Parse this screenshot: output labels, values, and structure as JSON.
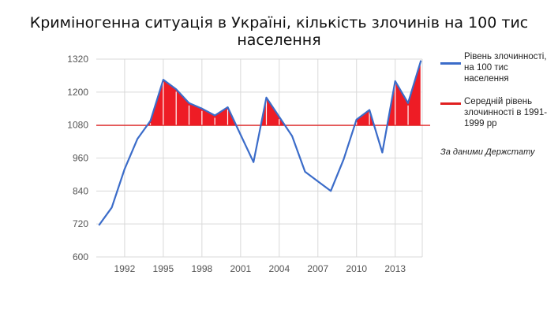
{
  "chart_data": {
    "type": "area",
    "title": "Криміногенна ситуація в Україні, кількість злочинів на 100 тис населення",
    "x": [
      1990,
      1991,
      1992,
      1993,
      1994,
      1995,
      1996,
      1997,
      1998,
      1999,
      2000,
      2001,
      2002,
      2003,
      2004,
      2005,
      2006,
      2007,
      2008,
      2009,
      2010,
      2011,
      2012,
      2013,
      2014,
      2015
    ],
    "series": [
      {
        "name": "Рівень злочинності, на 100 тис населення",
        "color": "#3b6cc9",
        "values": [
          715,
          780,
          920,
          1030,
          1095,
          1245,
          1210,
          1160,
          1140,
          1115,
          1145,
          1045,
          945,
          1180,
          1110,
          1040,
          910,
          875,
          840,
          955,
          1100,
          1135,
          980,
          1240,
          1160,
          1315
        ]
      }
    ],
    "reference_line": {
      "name": "Середній рівень злочинності в 1991-1999 рр",
      "value": 1079,
      "color": "#e02020"
    },
    "fill_above_reference": {
      "color": "#ee1c25",
      "stripe_color": "#ffffff"
    },
    "x_ticks": [
      1992,
      1995,
      1998,
      2001,
      2004,
      2007,
      2010,
      2013
    ],
    "y_ticks": [
      600,
      720,
      840,
      960,
      1080,
      1200,
      1320
    ],
    "xlim": [
      1989.8,
      2015.1
    ],
    "ylim": [
      600,
      1320
    ],
    "grid": true,
    "legend_position": "right",
    "annotation": "За даними Держстату"
  }
}
